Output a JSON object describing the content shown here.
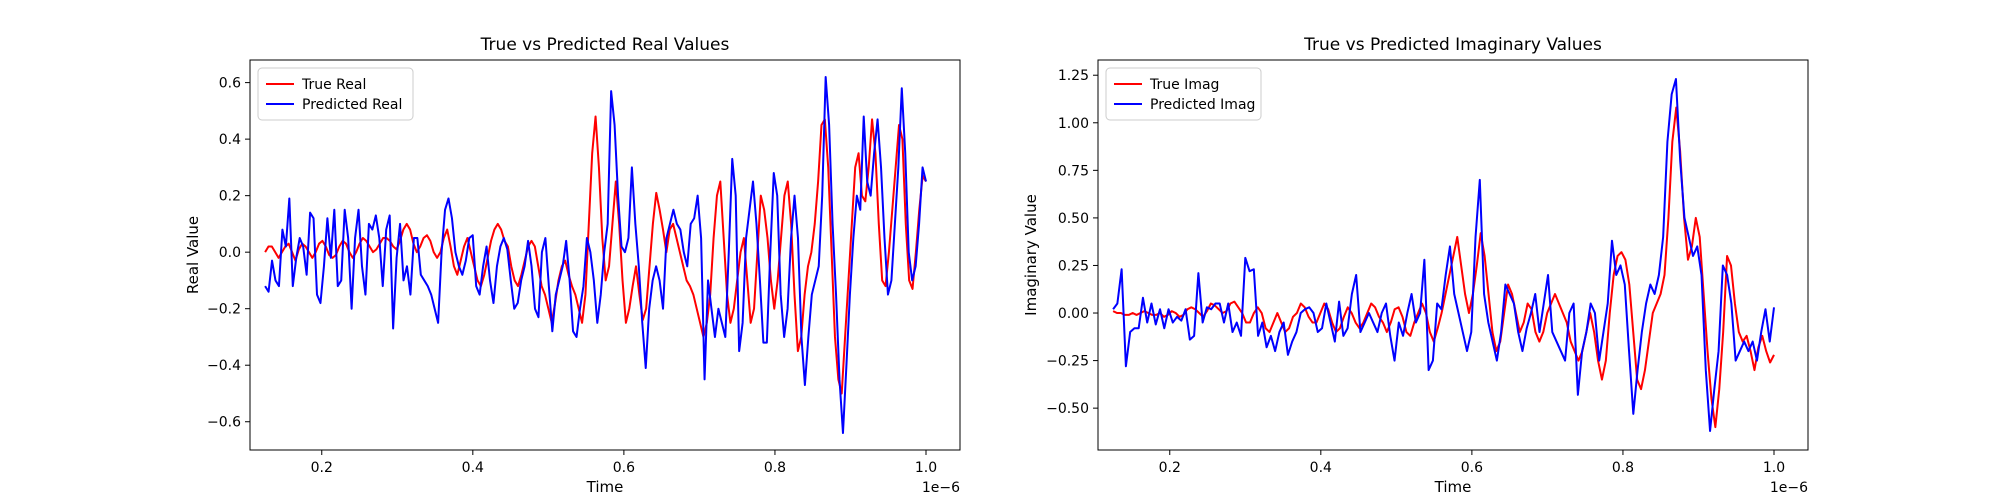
{
  "chart_data": [
    {
      "type": "line",
      "title": "True vs Predicted Real Values",
      "xlabel": "Time",
      "ylabel": "Real Value",
      "x_offset_label": "1e−6",
      "xlim": [
        0.105,
        1.045
      ],
      "ylim": [
        -0.7,
        0.68
      ],
      "xticks": [
        0.2,
        0.4,
        0.6,
        0.8,
        1.0
      ],
      "xtick_labels": [
        "0.2",
        "0.4",
        "0.6",
        "0.8",
        "1.0"
      ],
      "yticks": [
        -0.6,
        -0.4,
        -0.2,
        0.0,
        0.2,
        0.4,
        0.6
      ],
      "ytick_labels": [
        "−0.6",
        "−0.4",
        "−0.2",
        "0.0",
        "0.2",
        "0.4",
        "0.6"
      ],
      "grid": false,
      "legend_position": "top-left",
      "x_range": [
        0.125,
        1.0
      ],
      "series": [
        {
          "name": "True Real",
          "color": "#ff0000",
          "values": [
            0.0,
            0.02,
            0.02,
            0.0,
            -0.02,
            0.0,
            0.02,
            0.03,
            0.0,
            -0.03,
            0.01,
            0.03,
            0.02,
            0.0,
            -0.02,
            0.0,
            0.03,
            0.04,
            0.02,
            -0.01,
            -0.02,
            -0.01,
            0.02,
            0.04,
            0.03,
            0.0,
            -0.02,
            0.0,
            0.03,
            0.05,
            0.04,
            0.02,
            0.0,
            0.01,
            0.03,
            0.05,
            0.05,
            0.04,
            0.02,
            0.01,
            0.04,
            0.08,
            0.1,
            0.08,
            0.03,
            0.0,
            0.02,
            0.05,
            0.06,
            0.04,
            0.0,
            -0.02,
            0.0,
            0.05,
            0.08,
            0.02,
            -0.05,
            -0.08,
            -0.03,
            0.02,
            0.05,
            0.0,
            -0.05,
            -0.1,
            -0.12,
            -0.08,
            -0.02,
            0.04,
            0.08,
            0.1,
            0.08,
            0.04,
            0.02,
            -0.05,
            -0.1,
            -0.12,
            -0.08,
            -0.03,
            0.02,
            0.04,
            0.02,
            -0.05,
            -0.12,
            -0.15,
            -0.2,
            -0.25,
            -0.18,
            -0.1,
            -0.05,
            -0.03,
            -0.08,
            -0.12,
            -0.15,
            -0.2,
            -0.25,
            -0.15,
            0.1,
            0.35,
            0.48,
            0.3,
            0.05,
            -0.1,
            -0.05,
            0.1,
            0.25,
            0.1,
            -0.1,
            -0.25,
            -0.2,
            -0.12,
            -0.05,
            -0.15,
            -0.24,
            -0.2,
            -0.05,
            0.1,
            0.21,
            0.15,
            0.08,
            0.0,
            0.08,
            0.1,
            0.05,
            0.0,
            -0.05,
            -0.1,
            -0.12,
            -0.15,
            -0.2,
            -0.25,
            -0.3,
            -0.25,
            -0.15,
            0.05,
            0.2,
            0.25,
            0.05,
            -0.15,
            -0.25,
            -0.2,
            -0.1,
            0.0,
            0.05,
            -0.1,
            -0.25,
            -0.2,
            0.0,
            0.2,
            0.15,
            0.05,
            -0.1,
            -0.2,
            -0.1,
            0.05,
            0.2,
            0.25,
            0.1,
            -0.15,
            -0.35,
            -0.3,
            -0.15,
            -0.05,
            0.0,
            0.1,
            0.25,
            0.45,
            0.47,
            0.3,
            0.0,
            -0.3,
            -0.45,
            -0.5,
            -0.3,
            -0.1,
            0.1,
            0.3,
            0.35,
            0.2,
            0.18,
            0.3,
            0.47,
            0.35,
            0.1,
            -0.1,
            -0.12,
            0.0,
            0.15,
            0.3,
            0.45,
            0.4,
            0.1,
            -0.1,
            -0.13,
            0.0,
            0.15,
            0.27,
            0.25
          ]
        },
        {
          "name": "Predicted Real",
          "color": "#0000ff",
          "values": [
            -0.12,
            -0.14,
            -0.03,
            -0.1,
            -0.12,
            0.08,
            0.02,
            0.19,
            -0.12,
            -0.02,
            0.05,
            0.02,
            -0.08,
            0.14,
            0.12,
            -0.15,
            -0.18,
            -0.05,
            0.12,
            -0.02,
            0.15,
            -0.12,
            -0.1,
            0.15,
            0.05,
            -0.2,
            0.05,
            0.15,
            -0.05,
            -0.15,
            0.1,
            0.08,
            0.13,
            0.05,
            -0.12,
            0.08,
            0.13,
            -0.27,
            -0.02,
            0.1,
            -0.1,
            -0.05,
            -0.15,
            0.05,
            0.05,
            -0.08,
            -0.1,
            -0.12,
            -0.15,
            -0.2,
            -0.25,
            0.0,
            0.15,
            0.19,
            0.12,
            0.0,
            -0.05,
            -0.08,
            -0.03,
            0.05,
            0.06,
            -0.12,
            -0.15,
            -0.05,
            0.02,
            -0.1,
            -0.18,
            -0.05,
            0.02,
            0.05,
            0.01,
            -0.1,
            -0.2,
            -0.18,
            -0.1,
            -0.05,
            0.04,
            -0.05,
            -0.2,
            -0.23,
            0.0,
            0.05,
            -0.12,
            -0.28,
            -0.15,
            -0.1,
            -0.05,
            0.04,
            -0.1,
            -0.28,
            -0.3,
            -0.2,
            -0.12,
            0.05,
            0.0,
            -0.1,
            -0.25,
            -0.15,
            0.0,
            0.1,
            0.57,
            0.45,
            0.2,
            0.02,
            0.0,
            0.05,
            0.3,
            0.1,
            -0.05,
            -0.25,
            -0.41,
            -0.2,
            -0.1,
            -0.05,
            -0.1,
            -0.2,
            0.05,
            0.1,
            0.15,
            0.1,
            0.08,
            0.0,
            -0.05,
            0.1,
            0.12,
            0.2,
            0.05,
            -0.45,
            -0.1,
            -0.2,
            -0.3,
            -0.2,
            -0.25,
            -0.3,
            0.0,
            0.33,
            0.2,
            -0.35,
            -0.25,
            0.05,
            0.15,
            0.25,
            0.1,
            -0.1,
            -0.32,
            -0.32,
            0.0,
            0.28,
            0.2,
            -0.15,
            -0.3,
            -0.2,
            0.05,
            0.2,
            0.05,
            -0.3,
            -0.47,
            -0.3,
            -0.15,
            -0.1,
            -0.05,
            0.2,
            0.62,
            0.45,
            0.1,
            -0.15,
            -0.45,
            -0.64,
            -0.4,
            -0.15,
            0.05,
            0.2,
            0.15,
            0.48,
            0.25,
            0.2,
            0.35,
            0.47,
            0.3,
            0.05,
            -0.15,
            -0.1,
            0.1,
            0.3,
            0.58,
            0.35,
            0.0,
            -0.1,
            -0.05,
            0.1,
            0.3,
            0.25
          ]
        }
      ]
    },
    {
      "type": "line",
      "title": "True vs Predicted Imaginary Values",
      "xlabel": "Time",
      "ylabel": "Imaginary Value",
      "x_offset_label": "1e−6",
      "xlim": [
        0.105,
        1.045
      ],
      "ylim": [
        -0.72,
        1.33
      ],
      "xticks": [
        0.2,
        0.4,
        0.6,
        0.8,
        1.0
      ],
      "xtick_labels": [
        "0.2",
        "0.4",
        "0.6",
        "0.8",
        "1.0"
      ],
      "yticks": [
        -0.5,
        -0.25,
        0.0,
        0.25,
        0.5,
        0.75,
        1.0,
        1.25
      ],
      "ytick_labels": [
        "−0.50",
        "−0.25",
        "0.00",
        "0.25",
        "0.50",
        "0.75",
        "1.00",
        "1.25"
      ],
      "grid": false,
      "legend_position": "top-left",
      "x_range": [
        0.125,
        1.0
      ],
      "series": [
        {
          "name": "True Imag",
          "color": "#ff0000",
          "values": [
            0.01,
            0.0,
            0.0,
            -0.01,
            -0.01,
            0.0,
            -0.01,
            0.0,
            0.01,
            0.0,
            -0.01,
            -0.01,
            0.0,
            -0.02,
            -0.01,
            0.01,
            0.0,
            -0.02,
            -0.01,
            0.02,
            0.03,
            0.02,
            0.0,
            -0.02,
            0.01,
            0.05,
            0.04,
            0.02,
            0.0,
            0.01,
            0.05,
            0.06,
            0.03,
            0.0,
            -0.05,
            -0.05,
            0.0,
            0.03,
            0.0,
            -0.08,
            -0.1,
            -0.05,
            0.0,
            -0.05,
            -0.1,
            -0.08,
            -0.02,
            0.0,
            0.05,
            0.03,
            -0.02,
            -0.05,
            -0.05,
            0.0,
            0.05,
            0.02,
            -0.05,
            -0.1,
            -0.08,
            -0.02,
            0.03,
            0.0,
            -0.05,
            -0.08,
            -0.05,
            0.0,
            0.05,
            0.03,
            -0.02,
            -0.05,
            -0.1,
            -0.05,
            0.02,
            0.03,
            -0.02,
            -0.1,
            -0.12,
            -0.05,
            0.0,
            0.05,
            0.0,
            -0.1,
            -0.15,
            -0.08,
            0.0,
            0.1,
            0.2,
            0.3,
            0.4,
            0.25,
            0.1,
            0.0,
            0.1,
            0.25,
            0.42,
            0.3,
            0.1,
            -0.1,
            -0.2,
            -0.15,
            0.0,
            0.15,
            0.1,
            0.0,
            -0.1,
            -0.05,
            0.05,
            0.02,
            -0.1,
            -0.15,
            -0.1,
            0.0,
            0.05,
            0.1,
            0.05,
            0.0,
            -0.05,
            -0.15,
            -0.2,
            -0.25,
            -0.2,
            -0.1,
            0.0,
            -0.1,
            -0.25,
            -0.35,
            -0.25,
            0.0,
            0.2,
            0.3,
            0.32,
            0.28,
            0.15,
            -0.1,
            -0.35,
            -0.4,
            -0.3,
            -0.15,
            0.0,
            0.05,
            0.1,
            0.2,
            0.5,
            0.9,
            1.08,
            0.85,
            0.5,
            0.28,
            0.35,
            0.5,
            0.4,
            0.1,
            -0.2,
            -0.45,
            -0.6,
            -0.4,
            -0.1,
            0.3,
            0.25,
            0.05,
            -0.1,
            -0.15,
            -0.12,
            -0.2,
            -0.3,
            -0.18,
            -0.12,
            -0.2,
            -0.26,
            -0.22
          ]
        },
        {
          "name": "Predicted Imag",
          "color": "#0000ff",
          "values": [
            0.02,
            0.05,
            0.23,
            -0.28,
            -0.1,
            -0.08,
            -0.08,
            0.08,
            -0.05,
            0.05,
            -0.06,
            0.02,
            -0.08,
            0.02,
            -0.05,
            -0.02,
            -0.04,
            0.02,
            -0.14,
            -0.12,
            0.21,
            -0.05,
            0.03,
            0.02,
            0.05,
            0.05,
            -0.05,
            0.05,
            -0.1,
            -0.05,
            -0.12,
            0.29,
            0.22,
            0.23,
            -0.12,
            -0.05,
            -0.18,
            -0.12,
            -0.2,
            -0.1,
            -0.05,
            -0.22,
            -0.15,
            -0.1,
            0.0,
            0.02,
            0.03,
            0.0,
            -0.1,
            -0.08,
            0.05,
            -0.05,
            -0.15,
            0.06,
            -0.12,
            -0.08,
            0.1,
            0.2,
            -0.1,
            -0.05,
            0.0,
            -0.05,
            -0.1,
            0.0,
            0.05,
            -0.12,
            -0.25,
            -0.05,
            -0.12,
            0.0,
            0.1,
            -0.05,
            0.0,
            0.28,
            -0.3,
            -0.25,
            0.05,
            0.02,
            0.2,
            0.35,
            0.1,
            0.0,
            -0.1,
            -0.2,
            -0.1,
            0.4,
            0.7,
            0.1,
            -0.05,
            -0.15,
            -0.25,
            -0.1,
            0.15,
            0.1,
            0.05,
            -0.1,
            -0.2,
            -0.08,
            0.0,
            0.1,
            -0.1,
            0.05,
            0.2,
            -0.1,
            -0.15,
            -0.2,
            -0.25,
            0.0,
            0.05,
            -0.43,
            -0.2,
            -0.1,
            0.05,
            0.0,
            -0.25,
            -0.1,
            0.05,
            0.38,
            0.2,
            0.25,
            0.15,
            -0.2,
            -0.53,
            -0.3,
            -0.1,
            0.05,
            0.15,
            0.1,
            0.2,
            0.4,
            0.9,
            1.15,
            1.23,
            0.8,
            0.5,
            0.4,
            0.3,
            0.35,
            0.2,
            -0.3,
            -0.62,
            -0.4,
            -0.2,
            0.25,
            0.2,
            0.05,
            -0.25,
            -0.2,
            -0.15,
            -0.2,
            -0.15,
            -0.25,
            -0.1,
            0.02,
            -0.15,
            0.03
          ]
        }
      ]
    }
  ]
}
